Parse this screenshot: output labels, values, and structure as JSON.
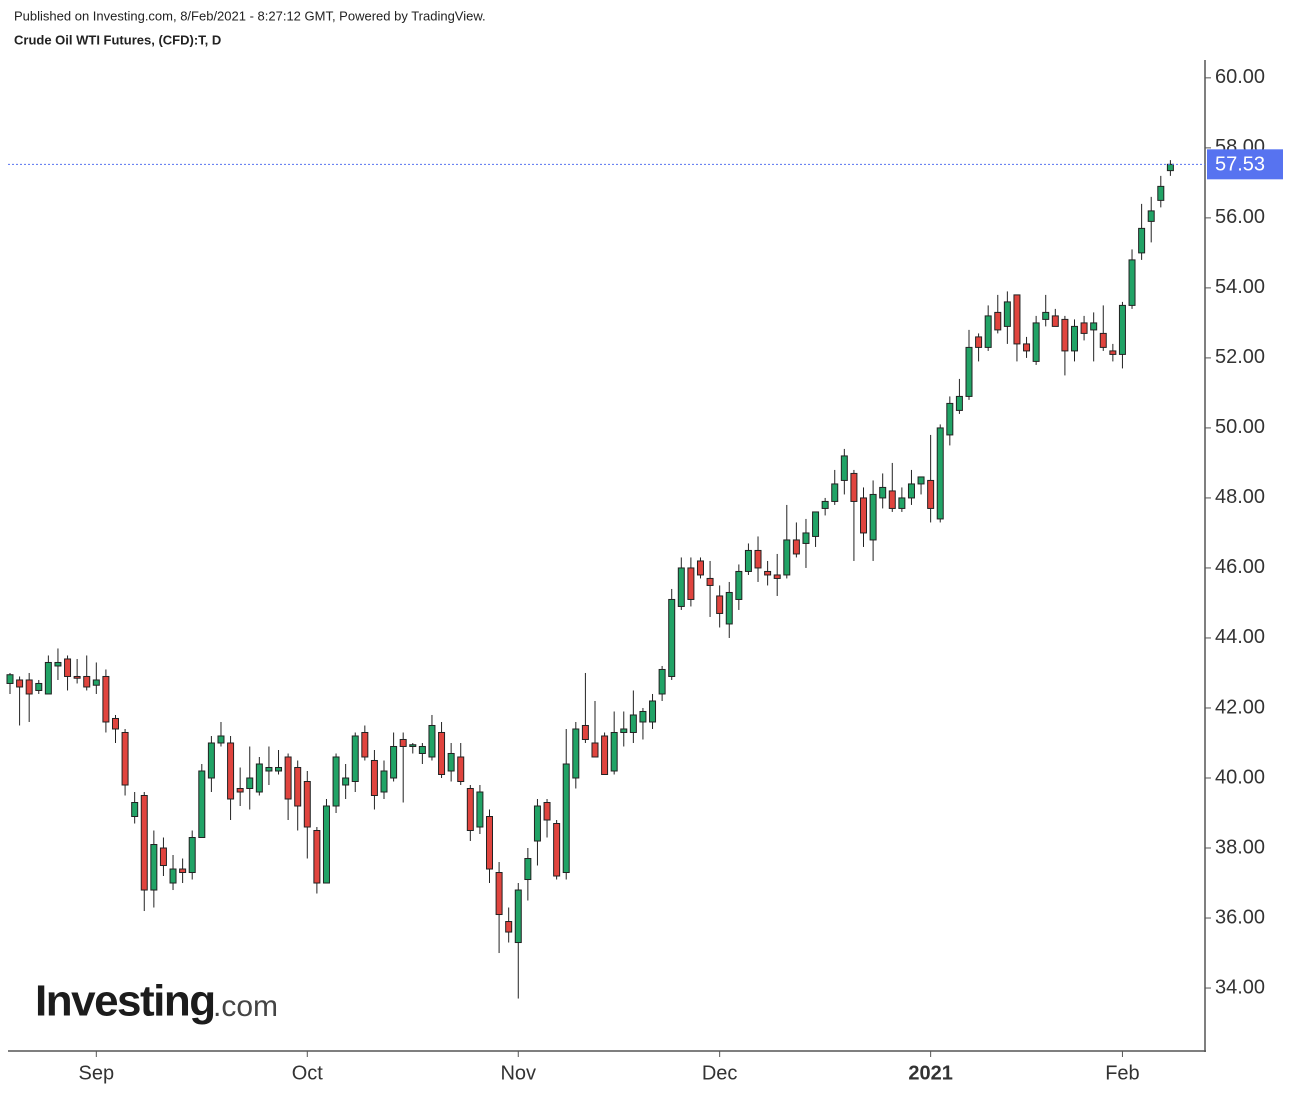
{
  "header": {
    "published": "Published on Investing.com, 8/Feb/2021 - 8:27:12 GMT, Powered by TradingView.",
    "symbol": "Crude Oil WTI Futures, (CFD):T, D"
  },
  "chart_data": {
    "type": "candlestick",
    "categories": [
      null,
      null,
      null,
      null,
      null,
      null,
      null,
      null,
      null,
      "Sep",
      null,
      null,
      null,
      null,
      null,
      null,
      null,
      null,
      null,
      null,
      null,
      null,
      null,
      null,
      null,
      null,
      null,
      null,
      null,
      null,
      null,
      "Oct",
      null,
      null,
      null,
      null,
      null,
      null,
      null,
      null,
      null,
      null,
      null,
      null,
      null,
      null,
      null,
      null,
      null,
      null,
      null,
      null,
      null,
      "Nov",
      null,
      null,
      null,
      null,
      null,
      null,
      null,
      null,
      null,
      null,
      null,
      null,
      null,
      null,
      null,
      null,
      null,
      null,
      null,
      null,
      "Dec",
      null,
      null,
      null,
      null,
      null,
      null,
      null,
      null,
      null,
      null,
      null,
      null,
      null,
      null,
      null,
      null,
      null,
      null,
      null,
      null,
      null,
      "2021",
      null,
      null,
      null,
      null,
      null,
      null,
      null,
      null,
      null,
      null,
      null,
      null,
      null,
      null,
      null,
      null,
      null,
      null,
      null,
      "Feb",
      null,
      null,
      null,
      null,
      null
    ],
    "open": [
      42.7,
      42.8,
      42.8,
      42.5,
      42.4,
      43.2,
      43.4,
      42.9,
      42.9,
      42.65,
      42.9,
      41.7,
      41.3,
      38.9,
      39.5,
      36.8,
      38.0,
      37.0,
      37.4,
      37.3,
      38.3,
      40.0,
      41.0,
      41.0,
      39.7,
      39.7,
      39.6,
      40.2,
      40.2,
      40.6,
      40.3,
      39.9,
      38.5,
      37.0,
      39.2,
      39.8,
      39.9,
      41.3,
      40.5,
      39.6,
      40.0,
      41.1,
      40.9,
      40.7,
      40.6,
      41.3,
      40.2,
      40.6,
      39.7,
      38.6,
      38.9,
      37.3,
      35.9,
      35.3,
      37.1,
      38.2,
      39.3,
      38.7,
      37.3,
      40.0,
      41.5,
      41.0,
      41.2,
      40.2,
      41.3,
      41.3,
      41.6,
      41.6,
      42.4,
      42.9,
      44.9,
      46.0,
      46.2,
      45.7,
      45.2,
      44.4,
      45.1,
      45.9,
      46.5,
      45.9,
      45.8,
      45.8,
      46.8,
      46.7,
      46.9,
      47.7,
      47.9,
      48.5,
      48.7,
      48.0,
      46.8,
      48.0,
      48.2,
      47.7,
      48.0,
      48.4,
      48.5,
      47.4,
      49.8,
      50.5,
      50.9,
      52.6,
      52.3,
      53.3,
      52.9,
      53.8,
      52.4,
      51.9,
      53.1,
      53.2,
      53.1,
      52.2,
      53.0,
      52.8,
      52.7,
      52.2,
      52.1,
      53.5,
      55.0,
      55.9,
      56.5,
      57.35
    ],
    "high": [
      43.0,
      42.9,
      43.0,
      42.8,
      43.5,
      43.7,
      43.5,
      43.4,
      43.5,
      43.3,
      43.1,
      41.8,
      41.4,
      39.6,
      39.6,
      38.5,
      38.3,
      37.8,
      37.7,
      38.5,
      40.4,
      41.2,
      41.6,
      41.2,
      40.3,
      40.9,
      40.6,
      40.9,
      40.8,
      40.7,
      40.5,
      40.2,
      38.6,
      39.4,
      40.7,
      40.4,
      41.3,
      41.5,
      40.8,
      40.5,
      41.3,
      41.3,
      41.0,
      41.0,
      41.8,
      41.6,
      41.0,
      41.0,
      39.8,
      39.8,
      39.1,
      37.6,
      36.3,
      37.0,
      38.0,
      39.4,
      39.4,
      38.8,
      41.4,
      41.6,
      43.0,
      42.2,
      41.3,
      41.9,
      41.9,
      42.5,
      42.0,
      42.4,
      43.2,
      45.4,
      46.3,
      46.3,
      46.3,
      46.2,
      45.5,
      45.6,
      46.1,
      46.7,
      46.9,
      46.2,
      46.4,
      47.8,
      47.3,
      47.4,
      47.6,
      48.0,
      48.8,
      49.4,
      48.8,
      48.3,
      48.5,
      48.7,
      49.0,
      48.3,
      48.8,
      48.6,
      49.8,
      50.1,
      50.9,
      51.4,
      52.8,
      52.7,
      53.5,
      53.8,
      53.9,
      53.8,
      52.6,
      53.2,
      53.8,
      53.4,
      53.2,
      53.1,
      53.2,
      53.3,
      53.5,
      52.4,
      53.6,
      55.1,
      56.4,
      56.6,
      57.2,
      57.65
    ],
    "low": [
      42.4,
      41.5,
      41.6,
      42.4,
      42.4,
      42.8,
      42.5,
      42.7,
      42.5,
      42.4,
      41.3,
      41.0,
      39.5,
      38.7,
      36.2,
      36.3,
      37.2,
      36.8,
      37.0,
      37.1,
      38.3,
      39.6,
      40.9,
      38.8,
      39.2,
      39.1,
      39.5,
      39.8,
      40.1,
      38.8,
      38.5,
      37.7,
      36.7,
      37.0,
      39.0,
      39.4,
      39.6,
      40.5,
      39.1,
      39.4,
      39.9,
      39.3,
      40.7,
      40.4,
      40.5,
      40.0,
      39.9,
      39.8,
      38.2,
      38.4,
      37.0,
      35.0,
      35.3,
      33.7,
      36.5,
      37.5,
      38.3,
      37.1,
      37.1,
      39.7,
      41.0,
      40.6,
      40.1,
      40.1,
      40.9,
      41.0,
      41.1,
      41.4,
      42.2,
      42.8,
      44.8,
      44.9,
      45.7,
      44.6,
      44.3,
      44.0,
      44.8,
      45.8,
      45.6,
      45.5,
      45.2,
      45.7,
      46.3,
      46.0,
      46.6,
      47.5,
      47.8,
      48.1,
      46.2,
      46.6,
      46.2,
      47.7,
      47.6,
      47.6,
      47.8,
      48.1,
      47.3,
      47.3,
      49.5,
      50.4,
      50.8,
      51.9,
      52.2,
      52.7,
      52.4,
      51.9,
      52.0,
      51.8,
      52.9,
      52.9,
      51.5,
      51.9,
      52.5,
      51.9,
      52.2,
      51.9,
      51.7,
      53.4,
      54.8,
      55.3,
      56.3,
      57.2
    ],
    "close": [
      42.95,
      42.6,
      42.4,
      42.7,
      43.3,
      43.3,
      42.9,
      42.85,
      42.6,
      42.8,
      41.6,
      41.4,
      39.8,
      39.3,
      36.8,
      38.1,
      37.5,
      37.4,
      37.3,
      38.3,
      40.2,
      41.0,
      41.2,
      39.4,
      39.6,
      40.0,
      40.4,
      40.3,
      40.3,
      39.4,
      39.2,
      38.6,
      37.0,
      39.2,
      40.6,
      40.0,
      41.2,
      40.6,
      39.5,
      40.2,
      40.9,
      40.9,
      40.95,
      40.9,
      41.5,
      40.1,
      40.7,
      39.9,
      38.5,
      39.6,
      37.4,
      36.1,
      35.6,
      36.8,
      37.7,
      39.2,
      38.8,
      37.2,
      40.4,
      41.4,
      41.1,
      40.6,
      40.1,
      41.3,
      41.4,
      41.8,
      41.9,
      42.2,
      43.1,
      45.1,
      46.0,
      45.1,
      45.8,
      45.5,
      44.7,
      45.3,
      45.9,
      46.5,
      46.0,
      45.8,
      45.7,
      46.8,
      46.4,
      47.0,
      47.6,
      47.9,
      48.4,
      49.2,
      47.9,
      47.0,
      48.1,
      48.3,
      47.7,
      48.0,
      48.4,
      48.6,
      47.7,
      50.0,
      50.7,
      50.9,
      52.3,
      52.3,
      53.2,
      52.8,
      53.6,
      52.4,
      52.2,
      53.0,
      53.3,
      52.9,
      52.2,
      52.9,
      52.7,
      53.0,
      52.3,
      52.1,
      53.5,
      54.8,
      55.7,
      56.2,
      56.9,
      57.53
    ],
    "up_color": "#21a366",
    "down_color": "#e0443e",
    "last_price": 57.53,
    "last_price_color": "#5773f0",
    "ylim": [
      32.23,
      60.51
    ],
    "yticks": [
      {
        "value": 34,
        "label": "34.00"
      },
      {
        "value": 36,
        "label": "36.00"
      },
      {
        "value": 38,
        "label": "38.00"
      },
      {
        "value": 40,
        "label": "40.00"
      },
      {
        "value": 42,
        "label": "42.00"
      },
      {
        "value": 44,
        "label": "44.00"
      },
      {
        "value": 46,
        "label": "46.00"
      },
      {
        "value": 48,
        "label": "48.00"
      },
      {
        "value": 50,
        "label": "50.00"
      },
      {
        "value": 52,
        "label": "52.00"
      },
      {
        "value": 54,
        "label": "54.00"
      },
      {
        "value": 56,
        "label": "56.00"
      },
      {
        "value": 58,
        "label": "58.00"
      },
      {
        "value": 60,
        "label": "60.00"
      }
    ],
    "logo": {
      "main": "Investing",
      "suffix": ".com"
    }
  }
}
